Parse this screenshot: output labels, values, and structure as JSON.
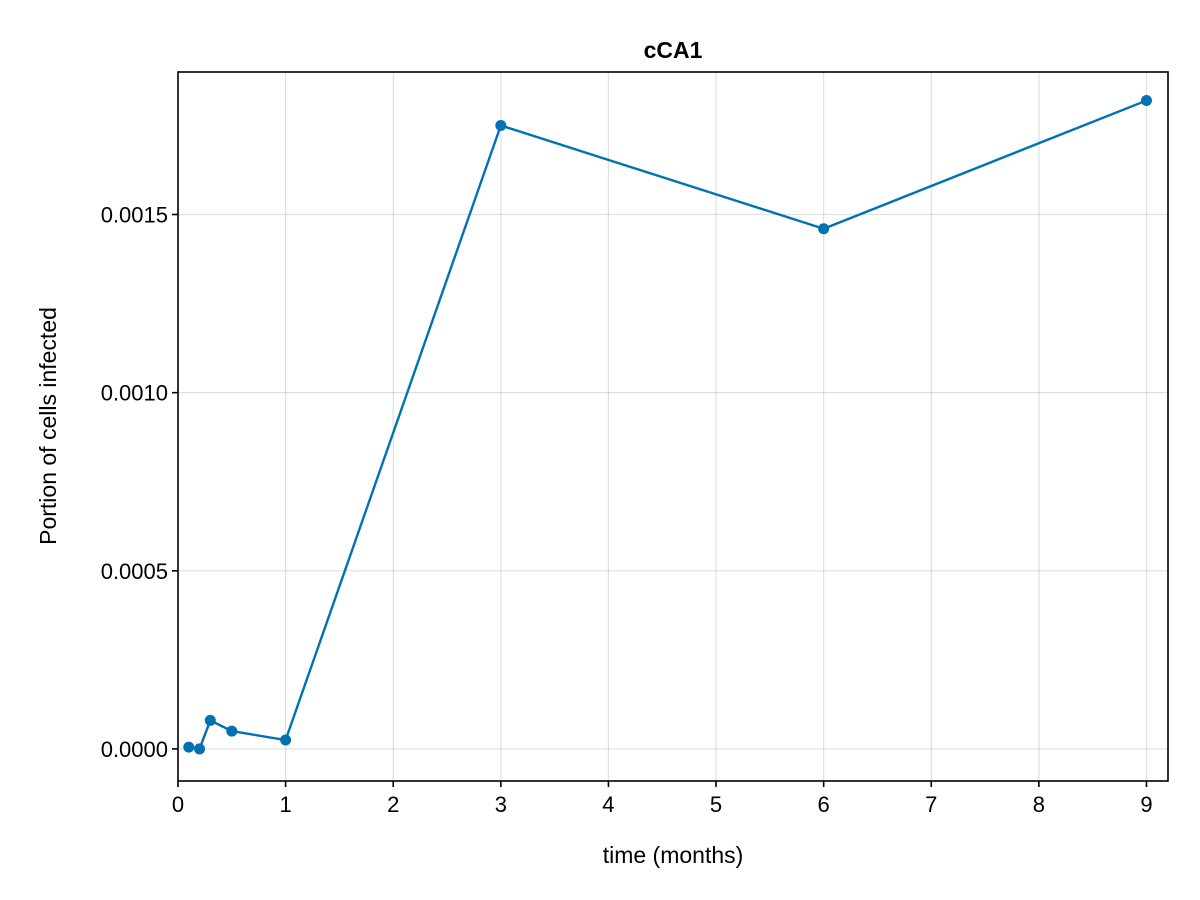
{
  "chart_data": {
    "type": "line",
    "title": "cCA1",
    "xlabel": "time (months)",
    "ylabel": "Portion of cells infected",
    "xlim": [
      0,
      9.2
    ],
    "ylim": [
      -9e-05,
      0.0019
    ],
    "x_ticks": [
      0,
      1,
      2,
      3,
      4,
      5,
      6,
      7,
      8,
      9
    ],
    "x_tick_labels": [
      "0",
      "1",
      "2",
      "3",
      "4",
      "5",
      "6",
      "7",
      "8",
      "9"
    ],
    "y_ticks": [
      0.0,
      0.0005,
      0.001,
      0.0015
    ],
    "y_tick_labels": [
      "0.0000",
      "0.0005",
      "0.0010",
      "0.0015"
    ],
    "grid": true,
    "series": [
      {
        "color": "#0072b2",
        "x": [
          0.1,
          0.2,
          0.3,
          0.5,
          1,
          3,
          6,
          9
        ],
        "y": [
          5e-06,
          0.0,
          8e-05,
          5e-05,
          2.5e-05,
          0.00175,
          0.00146,
          0.00182
        ]
      }
    ]
  }
}
